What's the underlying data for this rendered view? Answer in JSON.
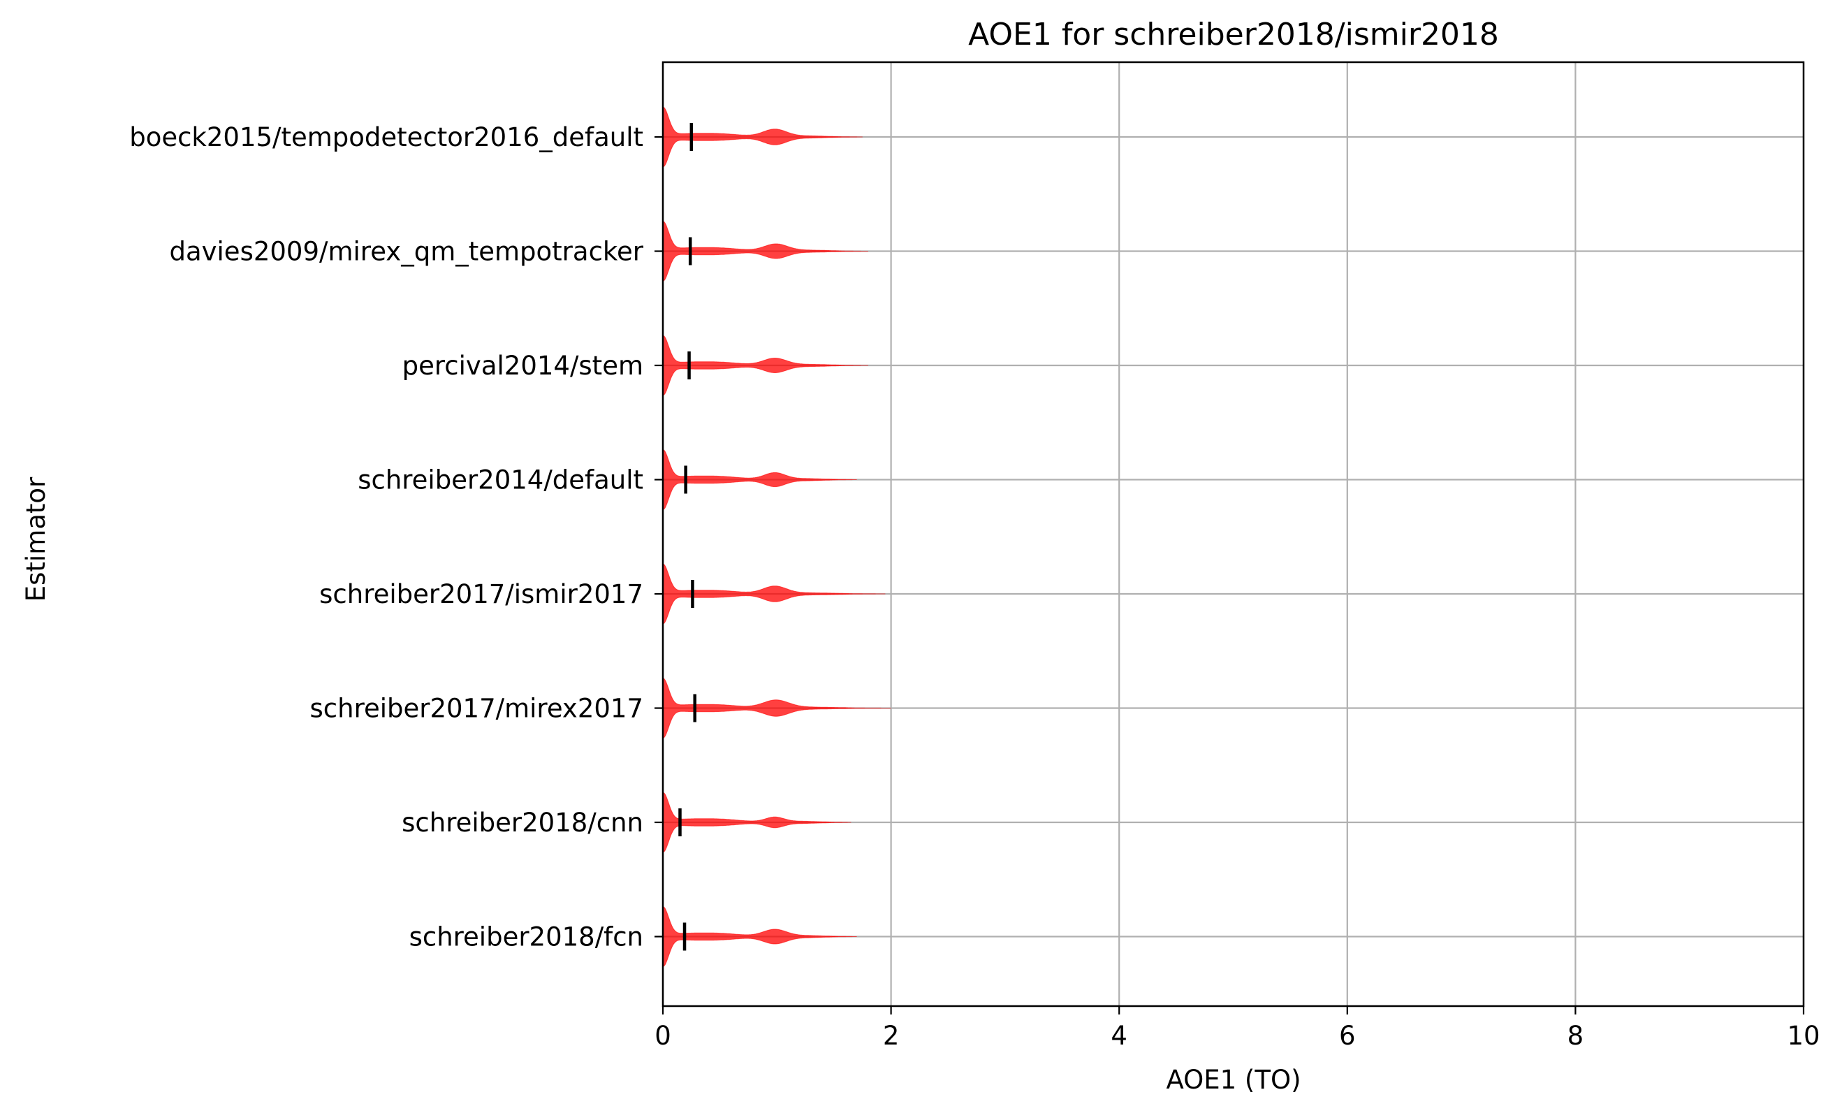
{
  "chart_data": {
    "type": "violin",
    "orientation": "horizontal",
    "title": "AOE1 for schreiber2018/ismir2018",
    "xlabel": "AOE1 (TO)",
    "ylabel": "Estimator",
    "xlim": [
      0,
      10
    ],
    "xticks": [
      0,
      2,
      4,
      6,
      8,
      10
    ],
    "grid": true,
    "violin_color": "#ff0000",
    "mean_marker_color": "#000000",
    "categories": [
      "boeck2015/tempodetector2016_default",
      "davies2009/mirex_qm_tempotracker",
      "percival2014/stem",
      "schreiber2014/default",
      "schreiber2017/ismir2017",
      "schreiber2017/mirex2017",
      "schreiber2018/cnn",
      "schreiber2018/fcn"
    ],
    "means": [
      0.25,
      0.24,
      0.23,
      0.2,
      0.26,
      0.28,
      0.15,
      0.19
    ],
    "extents": [
      1.75,
      1.8,
      1.8,
      1.7,
      1.95,
      2.0,
      1.65,
      1.7
    ],
    "secondary_modes": [
      {
        "x": 0.98,
        "halfwidth": 0.1,
        "height": 0.25
      },
      {
        "x": 0.99,
        "halfwidth": 0.1,
        "height": 0.23
      },
      {
        "x": 0.98,
        "halfwidth": 0.1,
        "height": 0.23
      },
      {
        "x": 0.98,
        "halfwidth": 0.09,
        "height": 0.22
      },
      {
        "x": 0.98,
        "halfwidth": 0.1,
        "height": 0.25
      },
      {
        "x": 0.99,
        "halfwidth": 0.11,
        "height": 0.26
      },
      {
        "x": 0.98,
        "halfwidth": 0.08,
        "height": 0.16
      },
      {
        "x": 0.98,
        "halfwidth": 0.1,
        "height": 0.23
      }
    ]
  }
}
